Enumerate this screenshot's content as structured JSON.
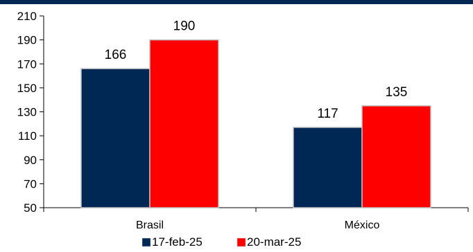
{
  "chart_data": {
    "type": "bar",
    "categories": [
      "Brasil",
      "México"
    ],
    "series": [
      {
        "name": "17-feb-25",
        "values": [
          166,
          117
        ],
        "color": "#002855"
      },
      {
        "name": "20-mar-25",
        "values": [
          190,
          135
        ],
        "color": "#ff0000"
      }
    ],
    "ylim": [
      50,
      210
    ],
    "yticks": [
      50,
      70,
      90,
      110,
      130,
      150,
      170,
      190,
      210
    ],
    "grid": false,
    "legend_position": "bottom-center"
  },
  "colors": {
    "header_bar": "#002855",
    "bar_outline": "#c0c0c0",
    "axis": "#000000"
  }
}
